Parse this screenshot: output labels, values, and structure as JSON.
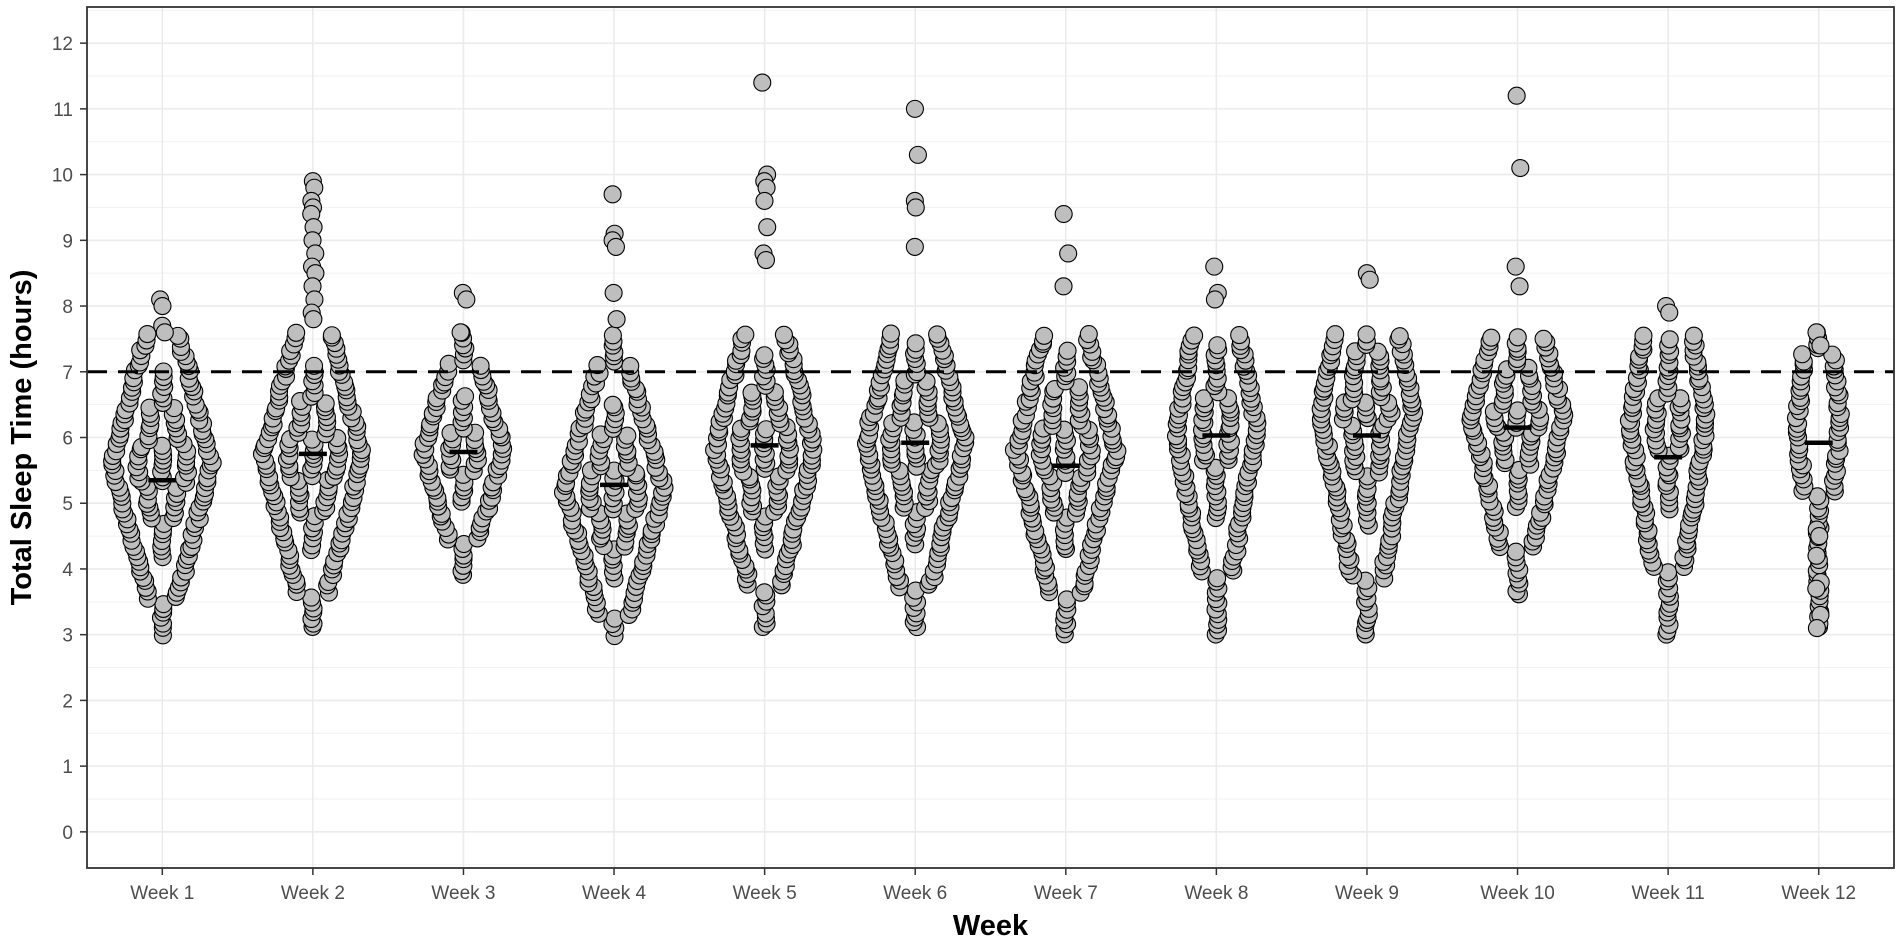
{
  "chart_data": {
    "type": "scatter",
    "subtype": "beeswarm",
    "title": "",
    "xlabel": "Week",
    "ylabel": "Total Sleep Time (hours)",
    "categories": [
      "Week 1",
      "Week 2",
      "Week 3",
      "Week 4",
      "Week 5",
      "Week 6",
      "Week 7",
      "Week 8",
      "Week 9",
      "Week 10",
      "Week 11",
      "Week 12"
    ],
    "ylim": [
      -0.55,
      12.55
    ],
    "yticks": [
      "0",
      "1",
      "2",
      "3",
      "4",
      "5",
      "6",
      "7",
      "8",
      "9",
      "10",
      "11",
      "12"
    ],
    "reference_line": {
      "y": 7,
      "style": "dashed",
      "color": "#000000"
    },
    "point_fill": "#bebebe",
    "point_stroke": "#000000",
    "median_color": "#000000",
    "grid": true,
    "legend": "none",
    "groups": [
      {
        "category": "Week 1",
        "median": 5.35,
        "min": 3.0,
        "max": 8.1,
        "mode": 5.6,
        "density": 1.0,
        "outliers": [
          8.1,
          8.0,
          7.7,
          7.6
        ]
      },
      {
        "category": "Week 2",
        "median": 5.75,
        "min": 3.1,
        "max": 9.9,
        "mode": 5.7,
        "density": 1.0,
        "outliers": [
          9.9,
          9.8,
          9.6,
          9.5,
          9.4,
          9.2,
          9.0,
          8.8,
          8.6,
          8.5,
          8.3,
          8.1,
          7.9,
          7.8
        ]
      },
      {
        "category": "Week 3",
        "median": 5.78,
        "min": 3.9,
        "max": 8.2,
        "mode": 5.8,
        "density": 0.75,
        "outliers": [
          8.2,
          8.1,
          7.6
        ]
      },
      {
        "category": "Week 4",
        "median": 5.28,
        "min": 3.0,
        "max": 9.7,
        "mode": 5.2,
        "density": 1.0,
        "outliers": [
          9.7,
          9.1,
          9.0,
          8.9,
          8.2,
          7.8
        ]
      },
      {
        "category": "Week 5",
        "median": 5.88,
        "min": 3.1,
        "max": 11.4,
        "mode": 5.8,
        "density": 1.0,
        "outliers": [
          11.4,
          10.0,
          9.9,
          9.8,
          9.6,
          9.2,
          8.8,
          8.7
        ]
      },
      {
        "category": "Week 6",
        "median": 5.92,
        "min": 3.1,
        "max": 11.0,
        "mode": 5.9,
        "density": 1.0,
        "outliers": [
          11.0,
          10.3,
          9.6,
          9.5,
          8.9
        ]
      },
      {
        "category": "Week 7",
        "median": 5.57,
        "min": 3.0,
        "max": 9.4,
        "mode": 5.8,
        "density": 1.0,
        "outliers": [
          9.4,
          8.8,
          8.3
        ]
      },
      {
        "category": "Week 8",
        "median": 6.03,
        "min": 3.0,
        "max": 8.6,
        "mode": 6.1,
        "density": 0.75,
        "outliers": [
          8.6,
          8.2,
          8.1
        ]
      },
      {
        "category": "Week 9",
        "median": 6.03,
        "min": 3.0,
        "max": 8.5,
        "mode": 6.4,
        "density": 0.9,
        "outliers": [
          8.5,
          8.4
        ]
      },
      {
        "category": "Week 10",
        "median": 6.15,
        "min": 3.6,
        "max": 11.2,
        "mode": 6.3,
        "density": 0.9,
        "outliers": [
          11.2,
          10.1,
          8.6,
          8.3
        ]
      },
      {
        "category": "Week 11",
        "median": 5.7,
        "min": 3.0,
        "max": 8.0,
        "mode": 6.2,
        "density": 0.7,
        "outliers": [
          8.0,
          7.9
        ]
      },
      {
        "category": "Week 12",
        "median": 5.92,
        "min": 3.1,
        "max": 7.6,
        "mode": 6.2,
        "density": 0.25,
        "outliers": [
          7.6,
          7.4,
          4.6,
          4.5,
          4.2,
          3.8,
          3.7,
          3.3,
          3.1
        ]
      }
    ]
  }
}
